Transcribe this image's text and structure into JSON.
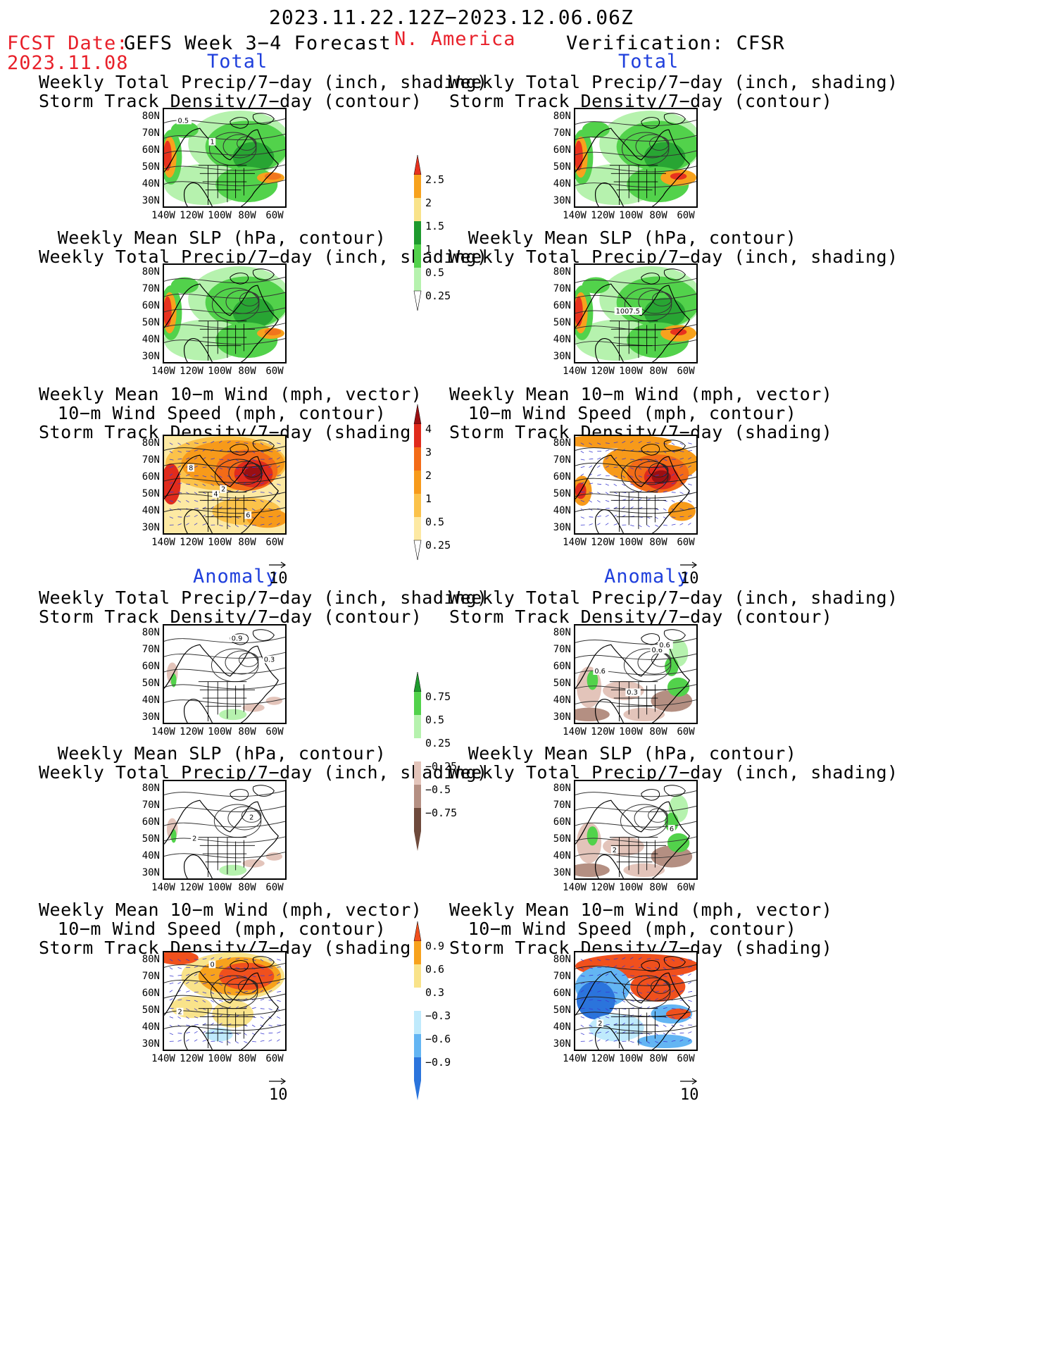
{
  "header": {
    "date_range": "2023.11.22.12Z−2023.12.06.06Z",
    "fcst_label": "FCST Date:",
    "fcst_date": "2023.11.08",
    "model": "GEFS Week 3−4 Forecast",
    "region": "N. America",
    "verification": "Verification: CFSR",
    "total_left": "Total",
    "total_right": "Total",
    "anomaly_left": "Anomaly",
    "anomaly_right": "Anomaly"
  },
  "captions": {
    "precip_storm": "Weekly Total Precip/7−day (inch, shading)\nStorm Track Density/7−day (contour)",
    "slp_precip": "Weekly Mean SLP (hPa, contour)\nWeekly Total Precip/7−day (inch, shading)",
    "wind": "Weekly Mean 10−m Wind (mph, vector)\n10−m Wind Speed (mph, contour)\nStorm Track Density/7−day (shading)"
  },
  "axes": {
    "lat_labels": [
      "80N",
      "70N",
      "60N",
      "50N",
      "40N",
      "30N"
    ],
    "lon_labels": [
      "140W",
      "120W",
      "100W",
      "80W",
      "60W"
    ]
  },
  "vector_ref": "10",
  "colorbars": {
    "precip_total": {
      "labels": [
        "2.5",
        "2",
        "1.5",
        "1",
        "0.5",
        "0.25"
      ],
      "colors": [
        "#e8321e",
        "#f7a21d",
        "#f9e38a",
        "#1e9a2d",
        "#52d24b",
        "#b6f2ae"
      ]
    },
    "storm_total": {
      "labels": [
        "4",
        "3",
        "2",
        "1",
        "0.5",
        "0.25"
      ],
      "colors": [
        "#9b0f12",
        "#e02b1c",
        "#f36b17",
        "#f79a1a",
        "#fbc24a",
        "#fde9a3"
      ]
    },
    "precip_anom": {
      "labels": [
        "0.75",
        "0.5",
        "0.25",
        "−0.25",
        "−0.5",
        "−0.75"
      ],
      "colors": [
        "#1e9a2d",
        "#52d24b",
        "#b6f2ae",
        "#ffffff",
        "#e3c4ba",
        "#b48f82",
        "#6e4a3c"
      ]
    },
    "storm_anom": {
      "labels": [
        "0.9",
        "0.6",
        "0.3",
        "−0.3",
        "−0.6",
        "−0.9"
      ],
      "colors": [
        "#f0501d",
        "#f7a21d",
        "#f9e38a",
        "#ffffff",
        "#bfeafc",
        "#63b5f3",
        "#2b74dc"
      ]
    }
  },
  "map_labels": {
    "m1": [
      "0.5",
      "1"
    ],
    "m4": [
      "1007.5"
    ],
    "m5": [
      "4",
      "6",
      "8",
      "2"
    ],
    "m7": [
      "0.9",
      "0.3"
    ],
    "m8": [
      "0.6",
      "0.6",
      "0.3",
      "0.6"
    ],
    "m9": [
      "2",
      "2"
    ],
    "m10": [
      "6",
      "2"
    ],
    "m11": [
      "2",
      "0"
    ],
    "m12": [
      "2"
    ]
  }
}
